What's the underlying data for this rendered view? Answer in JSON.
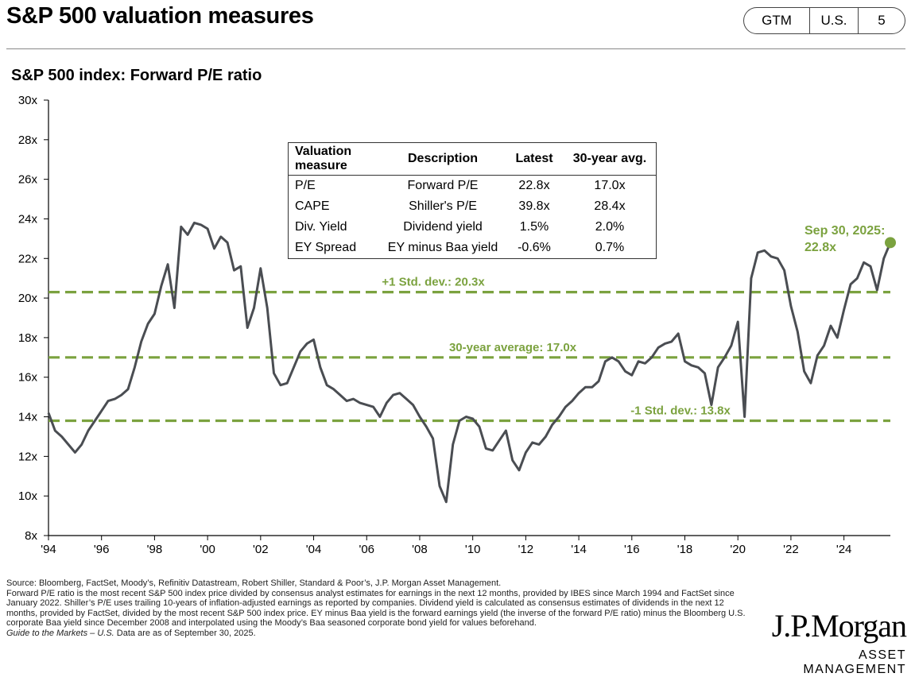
{
  "header": {
    "title": "S&P 500 valuation measures",
    "pill": [
      "GTM",
      "U.S.",
      "5"
    ]
  },
  "subtitle": "S&P 500 index: Forward P/E ratio",
  "table": {
    "headers": [
      "Valuation measure",
      "Description",
      "Latest",
      "30-year avg."
    ],
    "rows": [
      [
        "P/E",
        "Forward P/E",
        "22.8x",
        "17.0x"
      ],
      [
        "CAPE",
        "Shiller's P/E",
        "39.8x",
        "28.4x"
      ],
      [
        "Div. Yield",
        "Dividend yield",
        "1.5%",
        "2.0%"
      ],
      [
        "EY Spread",
        "EY minus Baa yield",
        "-0.6%",
        "0.7%"
      ]
    ]
  },
  "footnotes": {
    "source": "Source: Bloomberg, FactSet, Moody’s, Refinitiv Datastream, Robert Shiller, Standard & Poor’s, J.P. Morgan Asset Management.",
    "note": "Forward P/E ratio is the most recent S&P 500 index price divided by consensus analyst estimates for earnings in the next 12 months, provided by IBES since March 1994 and FactSet since January 2022. Shiller’s P/E uses trailing 10-years of inflation-adjusted earnings as reported by companies. Dividend yield is calculated as consensus estimates of dividends in the next 12 months, provided by FactSet, divided by the most recent S&P 500 index price. EY minus Baa yield is the forward earnings yield (the inverse of the forward P/E ratio) minus the Bloomberg U.S. corporate Baa yield since December 2008 and interpolated using the Moody’s Baa seasoned corporate bond yield for values beforehand.",
    "guide_title": "Guide to the Markets – U.S.",
    "guide_date": "Data are as of September 30, 2025."
  },
  "brand": {
    "name": "J.P.Morgan",
    "sub": "ASSET MANAGEMENT"
  },
  "chart_data": {
    "type": "line",
    "title": "S&P 500 index: Forward P/E ratio",
    "y_ticks": [
      "8x",
      "10x",
      "12x",
      "14x",
      "16x",
      "18x",
      "20x",
      "22x",
      "24x",
      "26x",
      "28x",
      "30x"
    ],
    "x_ticks": [
      "'94",
      "'96",
      "'98",
      "'00",
      "'02",
      "'04",
      "'06",
      "'08",
      "'10",
      "'12",
      "'14",
      "'16",
      "'18",
      "'20",
      "'22",
      "'24"
    ],
    "xlim": [
      1994.0,
      2025.75
    ],
    "ylim": [
      8,
      30
    ],
    "grid": false,
    "colors": {
      "line": "#4a4d52",
      "accent": "#7ba23f"
    },
    "reference_lines": [
      {
        "value": 20.3,
        "label": "+1 Std. dev.: 20.3x"
      },
      {
        "value": 17.0,
        "label": "30-year average: 17.0x"
      },
      {
        "value": 13.8,
        "label": "-1 Std. dev.: 13.8x"
      }
    ],
    "annotation": {
      "x": 2025.75,
      "y": 22.8,
      "label_line1": "Sep 30, 2025:",
      "label_line2": "22.8x"
    },
    "series": [
      {
        "x": [
          1994.0,
          1994.25,
          1994.5,
          1994.75,
          1995.0,
          1995.25,
          1995.5,
          1995.75,
          1996.0,
          1996.25,
          1996.5,
          1996.75,
          1997.0,
          1997.25,
          1997.5,
          1997.75,
          1998.0,
          1998.25,
          1998.5,
          1998.75,
          1999.0,
          1999.25,
          1999.5,
          1999.75,
          2000.0,
          2000.25,
          2000.5,
          2000.75,
          2001.0,
          2001.25,
          2001.5,
          2001.75,
          2002.0,
          2002.25,
          2002.5,
          2002.75,
          2003.0,
          2003.25,
          2003.5,
          2003.75,
          2004.0,
          2004.25,
          2004.5,
          2004.75,
          2005.0,
          2005.25,
          2005.5,
          2005.75,
          2006.0,
          2006.25,
          2006.5,
          2006.75,
          2007.0,
          2007.25,
          2007.5,
          2007.75,
          2008.0,
          2008.25,
          2008.5,
          2008.75,
          2009.0,
          2009.25,
          2009.5,
          2009.75,
          2010.0,
          2010.25,
          2010.5,
          2010.75,
          2011.0,
          2011.25,
          2011.5,
          2011.75,
          2012.0,
          2012.25,
          2012.5,
          2012.75,
          2013.0,
          2013.25,
          2013.5,
          2013.75,
          2014.0,
          2014.25,
          2014.5,
          2014.75,
          2015.0,
          2015.25,
          2015.5,
          2015.75,
          2016.0,
          2016.25,
          2016.5,
          2016.75,
          2017.0,
          2017.25,
          2017.5,
          2017.75,
          2018.0,
          2018.25,
          2018.5,
          2018.75,
          2019.0,
          2019.25,
          2019.5,
          2019.75,
          2020.0,
          2020.25,
          2020.5,
          2020.75,
          2021.0,
          2021.25,
          2021.5,
          2021.75,
          2022.0,
          2022.25,
          2022.5,
          2022.75,
          2023.0,
          2023.25,
          2023.5,
          2023.75,
          2024.0,
          2024.25,
          2024.5,
          2024.75,
          2025.0,
          2025.25,
          2025.5,
          2025.75
        ],
        "values": [
          14.2,
          13.3,
          13.0,
          12.6,
          12.2,
          12.6,
          13.3,
          13.8,
          14.3,
          14.8,
          14.9,
          15.1,
          15.4,
          16.5,
          17.8,
          18.7,
          19.2,
          20.6,
          21.7,
          19.5,
          23.6,
          23.2,
          23.8,
          23.7,
          23.5,
          22.5,
          23.1,
          22.8,
          21.4,
          21.6,
          18.5,
          19.5,
          21.5,
          19.5,
          16.2,
          15.6,
          15.7,
          16.5,
          17.3,
          17.7,
          17.9,
          16.5,
          15.6,
          15.4,
          15.1,
          14.8,
          14.9,
          14.7,
          14.6,
          14.5,
          14.0,
          14.7,
          15.1,
          15.2,
          14.9,
          14.6,
          14.0,
          13.5,
          12.9,
          10.5,
          9.7,
          12.6,
          13.8,
          14.0,
          13.9,
          13.5,
          12.4,
          12.3,
          12.8,
          13.3,
          11.8,
          11.3,
          12.2,
          12.7,
          12.6,
          13.0,
          13.6,
          14.0,
          14.5,
          14.8,
          15.2,
          15.5,
          15.5,
          15.8,
          16.8,
          17.0,
          16.8,
          16.3,
          16.1,
          16.8,
          16.7,
          17.0,
          17.5,
          17.7,
          17.8,
          18.2,
          16.8,
          16.6,
          16.5,
          16.2,
          14.6,
          16.5,
          17.0,
          17.6,
          18.8,
          14.0,
          21.0,
          22.3,
          22.4,
          22.1,
          22.0,
          21.4,
          19.6,
          18.3,
          16.3,
          15.7,
          17.1,
          17.6,
          18.6,
          18.0,
          19.4,
          20.7,
          21.0,
          21.8,
          21.6,
          20.4,
          22.0,
          22.8
        ]
      }
    ]
  }
}
